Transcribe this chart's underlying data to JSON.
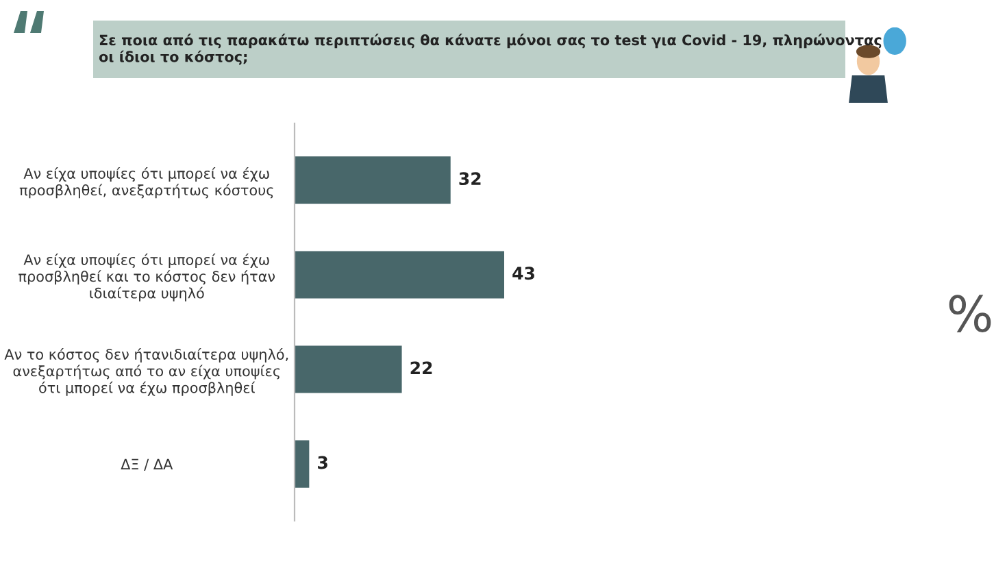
{
  "chart_data": {
    "type": "bar",
    "orientation": "horizontal",
    "title": "Σε ποια από τις παρακάτω περιπτώσεις θα κάνατε μόνοι σας το test για Covid - 19, πληρώνοντας\nοι ίδιοι το κόστος;",
    "categories": [
      "Αν είχα υποψίες ότι μπορεί να έχω\nπροσβληθεί, ανεξαρτήτως κόστους",
      "Αν είχα υποψίες ότι μπορεί να έχω\nπροσβληθεί και το κόστος δεν ήταν\nιδιαίτερα υψηλό",
      "Αν το κόστος δεν ήτανιδιαίτερα υψηλό,\nανεξαρτήτως από το αν είχα υποψίες\nότι μπορεί να έχω προσβληθεί",
      "ΔΞ / ΔΑ"
    ],
    "values": [
      32,
      43,
      22,
      3
    ],
    "color": "#48676a",
    "data_labels": true,
    "annotations": [
      "%"
    ]
  }
}
